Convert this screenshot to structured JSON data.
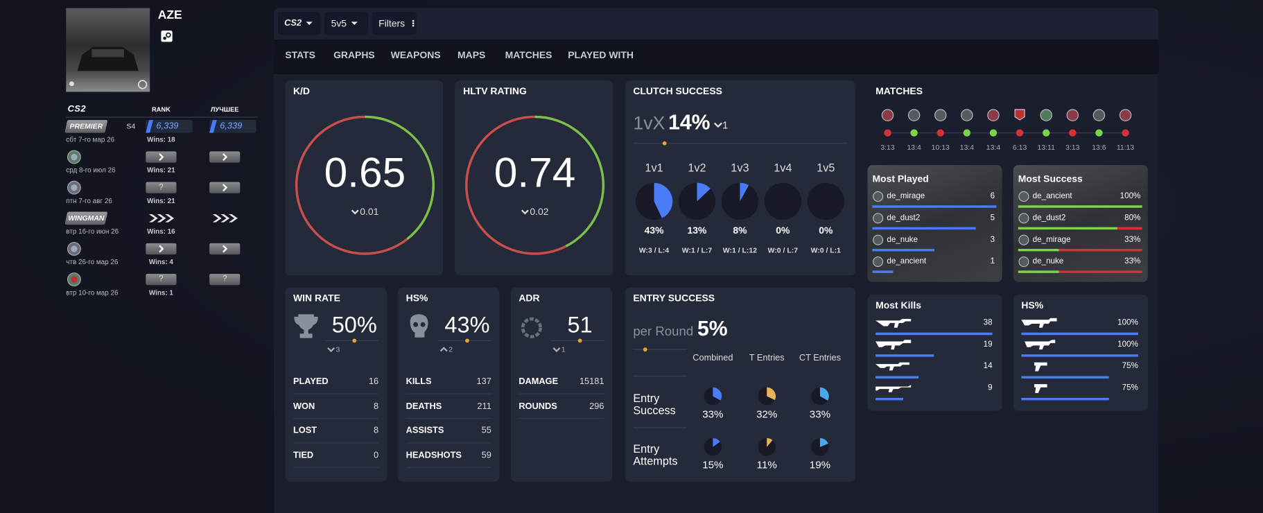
{
  "sidebar": {
    "name": "AZE",
    "rank_table": {
      "headers": [
        "CS2",
        "RANK",
        "ЛУЧШЕЕ"
      ],
      "rows": [
        {
          "badge": "PREMIER",
          "season": "S4",
          "rank": "6,339",
          "best": "6,339",
          "date": "сбт 7-го мар 26",
          "wins": "Wins: 18"
        },
        {
          "date": "срд 8-го июл 26",
          "wins": "Wins: 21"
        },
        {
          "rank": "?",
          "date": "птн 7-го авг 26",
          "wins": "Wins: 21"
        },
        {
          "badge": "WINGMAN",
          "date": "втр 16-го июн 26",
          "wins": "Wins: 16"
        },
        {
          "date": "чтв 26-го мар 26",
          "wins": "Wins: 4"
        },
        {
          "rank": "?",
          "best": "?",
          "date": "втр 10-го мар 26",
          "wins": "Wins: 1"
        }
      ]
    }
  },
  "toolbar": {
    "game": "CS2",
    "mode": "5v5",
    "filters": "Filters"
  },
  "tabs": [
    "STATS",
    "GRAPHS",
    "WEAPONS",
    "MAPS",
    "MATCHES",
    "PLAYED WITH"
  ],
  "kd": {
    "title": "K/D",
    "value": 0.65,
    "change": 0.01,
    "direction": "down"
  },
  "hltv": {
    "title": "HLTV RATING",
    "value": 0.74,
    "change": 0.02,
    "direction": "down"
  },
  "clutch": {
    "title": "CLUTCH SUCCESS",
    "prefix": "1vX",
    "value": {
      "value": 14,
      "label": "14%"
    },
    "change": 1,
    "direction": "down",
    "items": [
      {
        "label": "1v1",
        "rate": {
          "value": 43,
          "label": "43%"
        },
        "record": "W:3 / L:4"
      },
      {
        "label": "1v2",
        "rate": {
          "value": 13,
          "label": "13%"
        },
        "record": "W:1 / L:7"
      },
      {
        "label": "1v3",
        "rate": {
          "value": 8,
          "label": "8%"
        },
        "record": "W:1 / L:12"
      },
      {
        "label": "1v4",
        "rate": {
          "value": 0,
          "label": "0%"
        },
        "record": "W:0 / L:7"
      },
      {
        "label": "1v5",
        "rate": {
          "value": 0,
          "label": "0%"
        },
        "record": "W:0 / L:1"
      }
    ]
  },
  "matches": {
    "title": "MATCHES",
    "items": [
      {
        "score": "3:13",
        "result": "loss"
      },
      {
        "score": "13:4",
        "result": "win"
      },
      {
        "score": "10:13",
        "result": "loss"
      },
      {
        "score": "13:4",
        "result": "win"
      },
      {
        "score": "13:4",
        "result": "win"
      },
      {
        "score": "6:13",
        "result": "loss"
      },
      {
        "score": "13:11",
        "result": "win"
      },
      {
        "score": "3:13",
        "result": "loss"
      },
      {
        "score": "13:6",
        "result": "win"
      },
      {
        "score": "11:13",
        "result": "loss"
      }
    ]
  },
  "most_played": {
    "title": "Most Played",
    "rows": [
      {
        "map": "de_mirage",
        "count": 6
      },
      {
        "map": "de_dust2",
        "count": 5
      },
      {
        "map": "de_nuke",
        "count": 3
      },
      {
        "map": "de_ancient",
        "count": 1
      }
    ]
  },
  "most_success": {
    "title": "Most Success",
    "rows": [
      {
        "map": "de_ancient",
        "rate": {
          "value": 100,
          "label": "100%"
        }
      },
      {
        "map": "de_dust2",
        "rate": {
          "value": 80,
          "label": "80%"
        }
      },
      {
        "map": "de_mirage",
        "rate": {
          "value": 33,
          "label": "33%"
        }
      },
      {
        "map": "de_nuke",
        "rate": {
          "value": 33,
          "label": "33%"
        }
      }
    ]
  },
  "win_rate": {
    "title": "WIN RATE",
    "value": {
      "value": 50,
      "label": "50%"
    },
    "change": 3,
    "direction": "down",
    "stats": [
      {
        "label": "PLAYED",
        "value": 16
      },
      {
        "label": "WON",
        "value": 8
      },
      {
        "label": "LOST",
        "value": 8
      },
      {
        "label": "TIED",
        "value": 0
      }
    ]
  },
  "hs": {
    "title": "HS%",
    "value": {
      "value": 43,
      "label": "43%"
    },
    "change": 2,
    "direction": "up",
    "stats": [
      {
        "label": "KILLS",
        "value": 137
      },
      {
        "label": "DEATHS",
        "value": 211
      },
      {
        "label": "ASSISTS",
        "value": 55
      },
      {
        "label": "HEADSHOTS",
        "value": 59
      }
    ]
  },
  "adr": {
    "title": "ADR",
    "value": 51,
    "change": 1,
    "direction": "down",
    "stats": [
      {
        "label": "DAMAGE",
        "value": 15181
      },
      {
        "label": "ROUNDS",
        "value": 296
      }
    ]
  },
  "entry": {
    "title": "ENTRY SUCCESS",
    "prefix": "per Round",
    "value": {
      "value": 5,
      "label": "5%"
    },
    "columns": [
      "Combined",
      "T Entries",
      "CT Entries"
    ],
    "colors": [
      "#4a7cf7",
      "#e8b45a",
      "#4aa8f0"
    ],
    "rows": [
      {
        "label": "Entry Success",
        "values": [
          {
            "value": 33,
            "label": "33%"
          },
          {
            "value": 32,
            "label": "32%"
          },
          {
            "value": 33,
            "label": "33%"
          }
        ]
      },
      {
        "label": "Entry Attempts",
        "values": [
          {
            "value": 15,
            "label": "15%"
          },
          {
            "value": 11,
            "label": "11%"
          },
          {
            "value": 19,
            "label": "19%"
          }
        ]
      }
    ]
  },
  "most_kills": {
    "title": "Most Kills",
    "rows": [
      {
        "kills": 38
      },
      {
        "kills": 19
      },
      {
        "kills": 14
      },
      {
        "kills": 9
      }
    ]
  },
  "hs_weapons": {
    "title": "HS%",
    "rows": [
      {
        "value": 100,
        "label": "100%"
      },
      {
        "value": 100,
        "label": "100%"
      },
      {
        "value": 75,
        "label": "75%"
      },
      {
        "value": 75,
        "label": "75%"
      }
    ]
  }
}
